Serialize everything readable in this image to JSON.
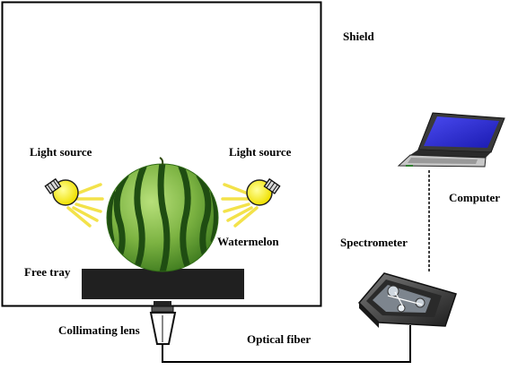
{
  "labels": {
    "shield": "Shield",
    "light_source_left": "Light source",
    "light_source_right": "Light source",
    "watermelon": "Watermelon",
    "free_tray": "Free tray",
    "collimating_lens": "Collimating lens",
    "optical_fiber": "Optical fiber",
    "spectrometer": "Spectrometer",
    "computer": "Computer"
  },
  "colors": {
    "shield_line": "#000000",
    "tray": "#202020",
    "bulb": "#f5f200",
    "light_ray": "#f3e24a",
    "melon_dark": "#1f4d12",
    "melon_light": "#8cc63f",
    "laptop_screen": "#2a2adf",
    "laptop_body": "#3a3a3a",
    "spectrometer_body": "#3c3c3c"
  }
}
